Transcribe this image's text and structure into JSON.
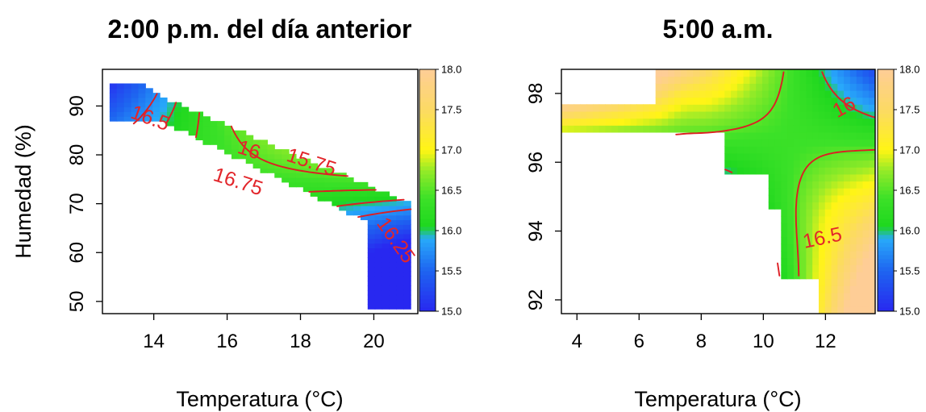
{
  "chart_data": [
    {
      "type": "heatmap",
      "title": "2:00 p.m. del día anterior",
      "xlabel": "Temperatura (°C)",
      "ylabel": "Humedad (%)",
      "xlim": [
        12.6,
        21.2
      ],
      "ylim": [
        47.5,
        97.5
      ],
      "xticks": [
        14,
        16,
        18,
        20
      ],
      "yticks": [
        50,
        60,
        70,
        80,
        90
      ],
      "colorbar": {
        "ticks": [
          "15.0",
          "15.5",
          "16.0",
          "16.5",
          "17.0",
          "17.5",
          "18.0"
        ],
        "range": [
          15.0,
          18.0
        ]
      },
      "contour_levels": [
        "16.75",
        "16.5",
        "16.25",
        "16",
        "15.75"
      ],
      "surface": {
        "trend": "value ≈ 16.42 + 0.10·(T−16.5) + 0.0235·(H−78) + 0.022·(H−78)·(T−16.5) (estimated)",
        "data_region": "diagonal band from (12.7°C, 92%) to (21°C, 50%)"
      }
    },
    {
      "type": "heatmap",
      "title": "5:00 a.m.",
      "xlabel": "Temperatura (°C)",
      "ylabel": "",
      "xlim": [
        3.5,
        13.6
      ],
      "ylim": [
        91.6,
        98.7
      ],
      "xticks": [
        4,
        6,
        8,
        10,
        12
      ],
      "yticks": [
        92,
        94,
        96,
        98
      ],
      "colorbar": {
        "ticks": [
          "15.0",
          "15.5",
          "16.0",
          "16.5",
          "17.0",
          "17.5",
          "18.0"
        ],
        "range": [
          15.0,
          18.0
        ]
      },
      "contour_levels": [
        "16",
        "16.5"
      ],
      "surface": {
        "trend": "value ≈ 16.35 − 0.2·(T−11)·(H−96.5) near upper right, ≈16.3 elsewhere (estimated)",
        "data_region": "upper band H 96.8–97.7 from 3.5°C, H up to 98.6 from 6.5°C, lower area from 8.8°C stepping to 11.8°C at 92%"
      }
    }
  ]
}
